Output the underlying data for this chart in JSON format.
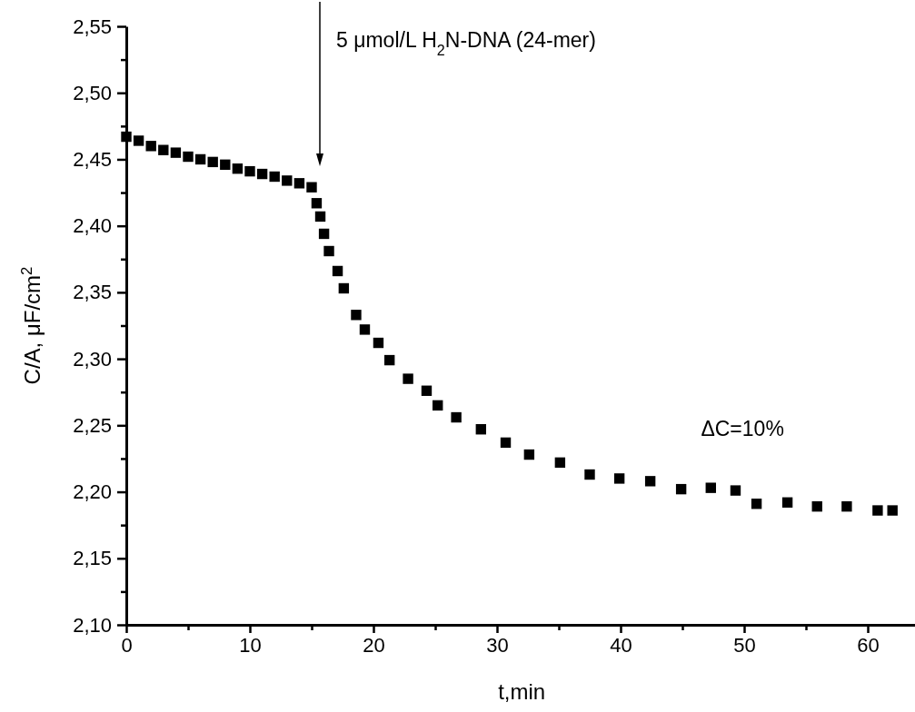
{
  "chart_data": {
    "type": "scatter",
    "xlabel": "t,min",
    "ylabel": "C/A, μF/cm$^{2}$",
    "marker": "square",
    "grid": false,
    "xlim": [
      0,
      64
    ],
    "ylim": [
      2.1,
      2.55
    ],
    "xticks": [
      0,
      {
        "value": 5,
        "label": null
      },
      10,
      {
        "value": 15,
        "label": null
      },
      20,
      {
        "value": 25,
        "label": null
      },
      30,
      {
        "value": 35,
        "label": null
      },
      40,
      {
        "value": 45,
        "label": null
      },
      50,
      {
        "value": 55,
        "label": null
      },
      60
    ],
    "yticks": [
      {
        "value": 2.1,
        "label": "2,10"
      },
      {
        "value": 2.125,
        "label": null
      },
      {
        "value": 2.15,
        "label": "2,15"
      },
      {
        "value": 2.175,
        "label": null
      },
      {
        "value": 2.2,
        "label": "2,20"
      },
      {
        "value": 2.225,
        "label": null
      },
      {
        "value": 2.25,
        "label": "2,25"
      },
      {
        "value": 2.275,
        "label": null
      },
      {
        "value": 2.3,
        "label": "2,30"
      },
      {
        "value": 2.325,
        "label": null
      },
      {
        "value": 2.35,
        "label": "2,35"
      },
      {
        "value": 2.375,
        "label": null
      },
      {
        "value": 2.4,
        "label": "2,40"
      },
      {
        "value": 2.425,
        "label": null
      },
      {
        "value": 2.45,
        "label": "2,45"
      },
      {
        "value": 2.475,
        "label": null
      },
      {
        "value": 2.5,
        "label": "2,50"
      },
      {
        "value": 2.525,
        "label": null
      },
      {
        "value": 2.55,
        "label": "2,55"
      }
    ],
    "x": [
      0,
      1,
      2,
      3,
      4,
      5,
      6,
      7,
      8,
      9,
      10,
      11,
      12,
      13,
      14,
      15,
      15.4,
      15.7,
      16.0,
      16.4,
      17.1,
      17.6,
      18.6,
      19.3,
      20.4,
      21.3,
      22.8,
      24.3,
      25.2,
      26.7,
      28.7,
      30.7,
      32.6,
      35.1,
      37.5,
      39.9,
      42.4,
      44.9,
      47.3,
      49.3,
      51.0,
      53.5,
      55.9,
      58.3,
      60.8,
      62
    ],
    "series": [
      {
        "color": "#000000",
        "values": [
          2.467,
          2.464,
          2.46,
          2.457,
          2.455,
          2.452,
          2.45,
          2.448,
          2.446,
          2.443,
          2.441,
          2.439,
          2.437,
          2.434,
          2.432,
          2.429,
          2.417,
          2.407,
          2.394,
          2.381,
          2.366,
          2.353,
          2.333,
          2.322,
          2.312,
          2.299,
          2.285,
          2.276,
          2.265,
          2.256,
          2.247,
          2.237,
          2.228,
          2.222,
          2.213,
          2.21,
          2.208,
          2.202,
          2.203,
          2.201,
          2.191,
          2.192,
          2.189,
          2.189,
          2.186,
          2.186
        ]
      }
    ],
    "annotations": [
      "5 μmol/L H$_{2}$N-DNA (24-mer)",
      "ΔC=10%"
    ]
  }
}
